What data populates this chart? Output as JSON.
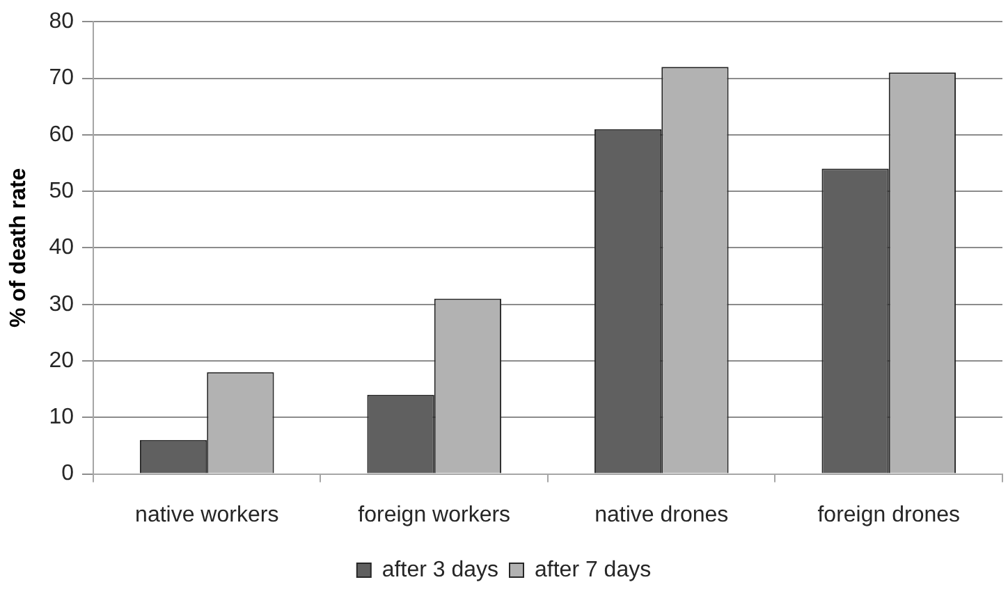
{
  "chart_data": {
    "type": "bar",
    "ylabel": "% of death rate",
    "categories": [
      "native workers",
      "foreign workers",
      "native drones",
      "foreign drones"
    ],
    "series": [
      {
        "name": "after 3 days",
        "color": "#606060",
        "values": [
          6,
          14,
          61,
          54
        ]
      },
      {
        "name": "after 7 days",
        "color": "#b2b2b2",
        "values": [
          18,
          31,
          72,
          71
        ]
      }
    ],
    "ylim": [
      0,
      80
    ],
    "yticks": [
      0,
      10,
      20,
      30,
      40,
      50,
      60,
      70,
      80
    ],
    "grid": "y",
    "legend": "bottom"
  }
}
